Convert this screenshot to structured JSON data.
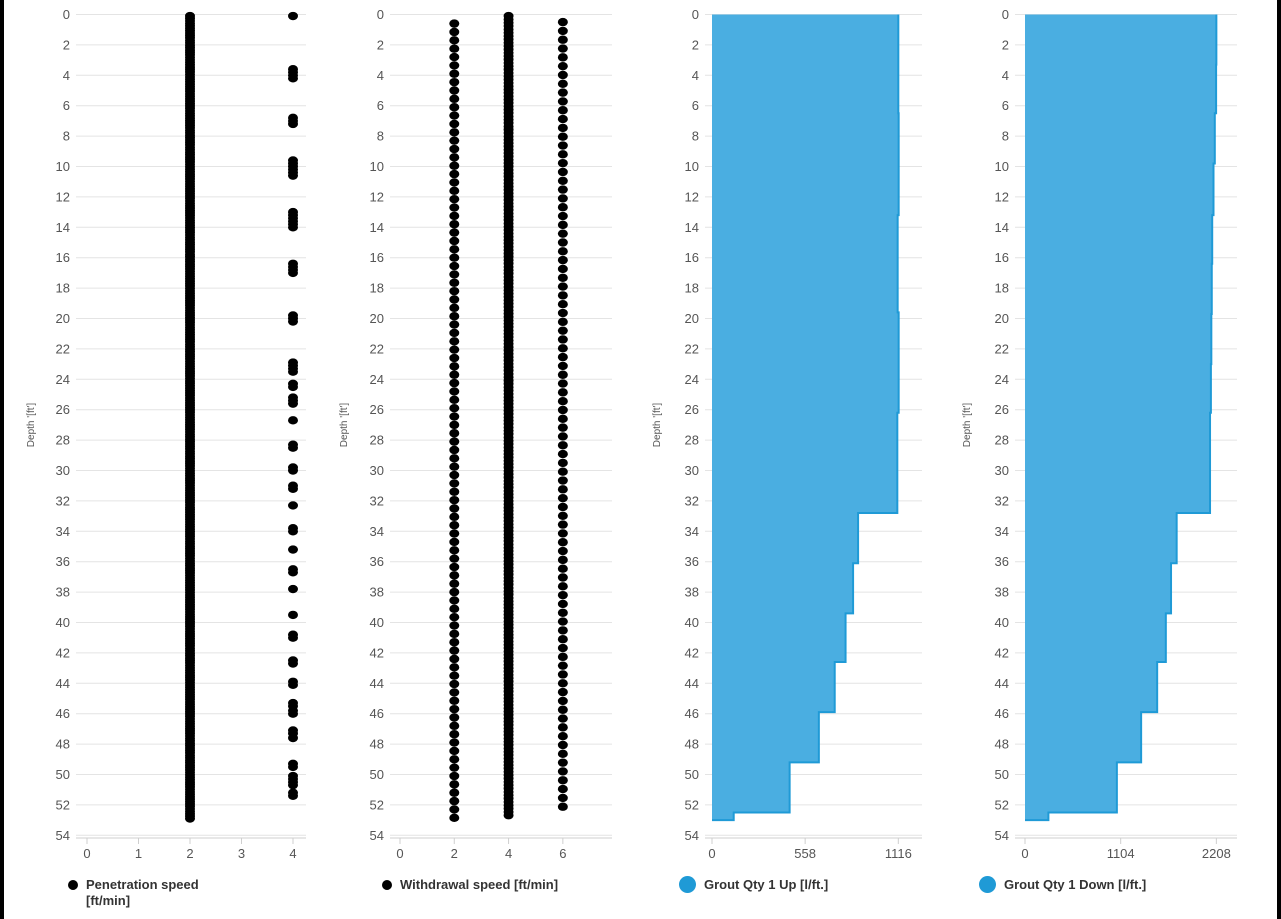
{
  "chart_data": [
    {
      "type": "scatter",
      "ylabel": "Depth '[ft']",
      "yticks": [
        "0",
        "2",
        "4",
        "6",
        "8",
        "10",
        "12",
        "14",
        "16",
        "18",
        "20",
        "22",
        "24",
        "26",
        "28",
        "30",
        "32",
        "34",
        "36",
        "38",
        "40",
        "42",
        "44",
        "46",
        "48",
        "50",
        "52",
        "54"
      ],
      "ylim": [
        0,
        54
      ],
      "xticks": [
        "0",
        "1",
        "2",
        "3",
        "4"
      ],
      "xlim": [
        0,
        4
      ],
      "series": [
        {
          "name": "Penetration speed [ft/min]",
          "color": "#000000",
          "clusters": [
            {
              "x": 2,
              "depth_range": [
                0.1,
                52.9
              ]
            },
            {
              "x": 4,
              "depths": [
                0.1,
                3.6,
                3.8,
                4.0,
                4.2,
                6.8,
                7.0,
                7.2,
                9.6,
                9.8,
                10.0,
                10.2,
                10.4,
                10.6,
                13.0,
                13.2,
                13.4,
                13.6,
                13.8,
                14.0,
                16.4,
                16.6,
                16.8,
                17.0,
                19.8,
                20.0,
                20.2,
                22.9,
                23.1,
                23.3,
                23.5,
                24.3,
                24.5,
                25.2,
                25.4,
                25.6,
                26.7,
                28.3,
                28.5,
                29.8,
                30.0,
                31.0,
                31.2,
                32.3,
                33.8,
                34.0,
                35.2,
                36.5,
                36.7,
                37.8,
                39.5,
                40.8,
                41.0,
                42.5,
                42.7,
                43.9,
                44.1,
                45.3,
                45.5,
                45.8,
                46.0,
                47.1,
                47.3,
                47.6,
                49.3,
                49.5,
                50.1,
                50.3,
                50.5,
                50.7,
                51.2,
                51.4
              ]
            }
          ]
        }
      ]
    },
    {
      "type": "scatter",
      "ylabel": "Depth '[ft']",
      "yticks": [
        "0",
        "2",
        "4",
        "6",
        "8",
        "10",
        "12",
        "14",
        "16",
        "18",
        "20",
        "22",
        "24",
        "26",
        "28",
        "30",
        "32",
        "34",
        "36",
        "38",
        "40",
        "42",
        "44",
        "46",
        "48",
        "50",
        "52",
        "54"
      ],
      "ylim": [
        0,
        54
      ],
      "xticks": [
        "0",
        "2",
        "4",
        "6"
      ],
      "xlim": [
        0,
        7
      ],
      "series": [
        {
          "name": "Withdrawal speed [ft/min]",
          "color": "#000000",
          "clusters": [
            {
              "x": 2,
              "depth_range": [
                0.6,
                52.9
              ],
              "step": 0.55
            },
            {
              "x": 4,
              "depth_range": [
                0.1,
                52.8
              ],
              "step": 0.22
            },
            {
              "x": 6,
              "depth_range": [
                0.5,
                52.3
              ],
              "step": 0.58
            }
          ]
        }
      ]
    },
    {
      "type": "area",
      "ylabel": "Depth '[ft']",
      "yticks": [
        "0",
        "2",
        "4",
        "6",
        "8",
        "10",
        "12",
        "14",
        "16",
        "18",
        "20",
        "22",
        "24",
        "26",
        "28",
        "30",
        "32",
        "34",
        "36",
        "38",
        "40",
        "42",
        "44",
        "46",
        "48",
        "50",
        "52",
        "54"
      ],
      "ylim": [
        0,
        54
      ],
      "xticks": [
        "0",
        "558",
        "1116"
      ],
      "xlim": [
        0,
        1150
      ],
      "series": [
        {
          "name": "Grout Qty 1 Up [l/ft.]",
          "color": "#4aaee1",
          "line_color": "#1f9ad6",
          "profile": [
            {
              "depth": 0,
              "value": 1116
            },
            {
              "depth": 6.5,
              "value": 1118
            },
            {
              "depth": 13.2,
              "value": 1112
            },
            {
              "depth": 19.6,
              "value": 1118
            },
            {
              "depth": 26.2,
              "value": 1110
            },
            {
              "depth": 32.8,
              "value": 875
            },
            {
              "depth": 36.1,
              "value": 845
            },
            {
              "depth": 39.4,
              "value": 800
            },
            {
              "depth": 42.6,
              "value": 735
            },
            {
              "depth": 45.9,
              "value": 640
            },
            {
              "depth": 49.2,
              "value": 465
            },
            {
              "depth": 52.5,
              "value": 130
            },
            {
              "depth": 53.0,
              "value": 0
            }
          ]
        }
      ]
    },
    {
      "type": "area",
      "ylabel": "Depth '[ft']",
      "yticks": [
        "0",
        "2",
        "4",
        "6",
        "8",
        "10",
        "12",
        "14",
        "16",
        "18",
        "20",
        "22",
        "24",
        "26",
        "28",
        "30",
        "32",
        "34",
        "36",
        "38",
        "40",
        "42",
        "44",
        "46",
        "48",
        "50",
        "52",
        "54"
      ],
      "ylim": [
        0,
        54
      ],
      "xticks": [
        "0",
        "1104",
        "2208"
      ],
      "xlim": [
        0,
        2250
      ],
      "series": [
        {
          "name": "Grout Qty 1 Down [l/ft.]",
          "color": "#4aaee1",
          "line_color": "#1f9ad6",
          "profile": [
            {
              "depth": 0,
              "value": 2208
            },
            {
              "depth": 3.3,
              "value": 2205
            },
            {
              "depth": 6.5,
              "value": 2190
            },
            {
              "depth": 9.8,
              "value": 2175
            },
            {
              "depth": 13.2,
              "value": 2160
            },
            {
              "depth": 16.4,
              "value": 2155
            },
            {
              "depth": 19.7,
              "value": 2150
            },
            {
              "depth": 23.0,
              "value": 2145
            },
            {
              "depth": 26.2,
              "value": 2135
            },
            {
              "depth": 32.8,
              "value": 1750
            },
            {
              "depth": 36.1,
              "value": 1685
            },
            {
              "depth": 39.4,
              "value": 1625
            },
            {
              "depth": 42.6,
              "value": 1525
            },
            {
              "depth": 45.9,
              "value": 1340
            },
            {
              "depth": 49.2,
              "value": 1060
            },
            {
              "depth": 52.5,
              "value": 270
            },
            {
              "depth": 53.0,
              "value": 0
            }
          ]
        }
      ]
    }
  ],
  "legends": [
    {
      "label": "Penetration speed [ft/min]",
      "color": "#000000"
    },
    {
      "label": "Withdrawal speed [ft/min]",
      "color": "#000000"
    },
    {
      "label": "Grout Qty 1 Up [l/ft.]",
      "color": "#1f9ad6"
    },
    {
      "label": "Grout Qty 1 Down [l/ft.]",
      "color": "#1f9ad6"
    }
  ]
}
